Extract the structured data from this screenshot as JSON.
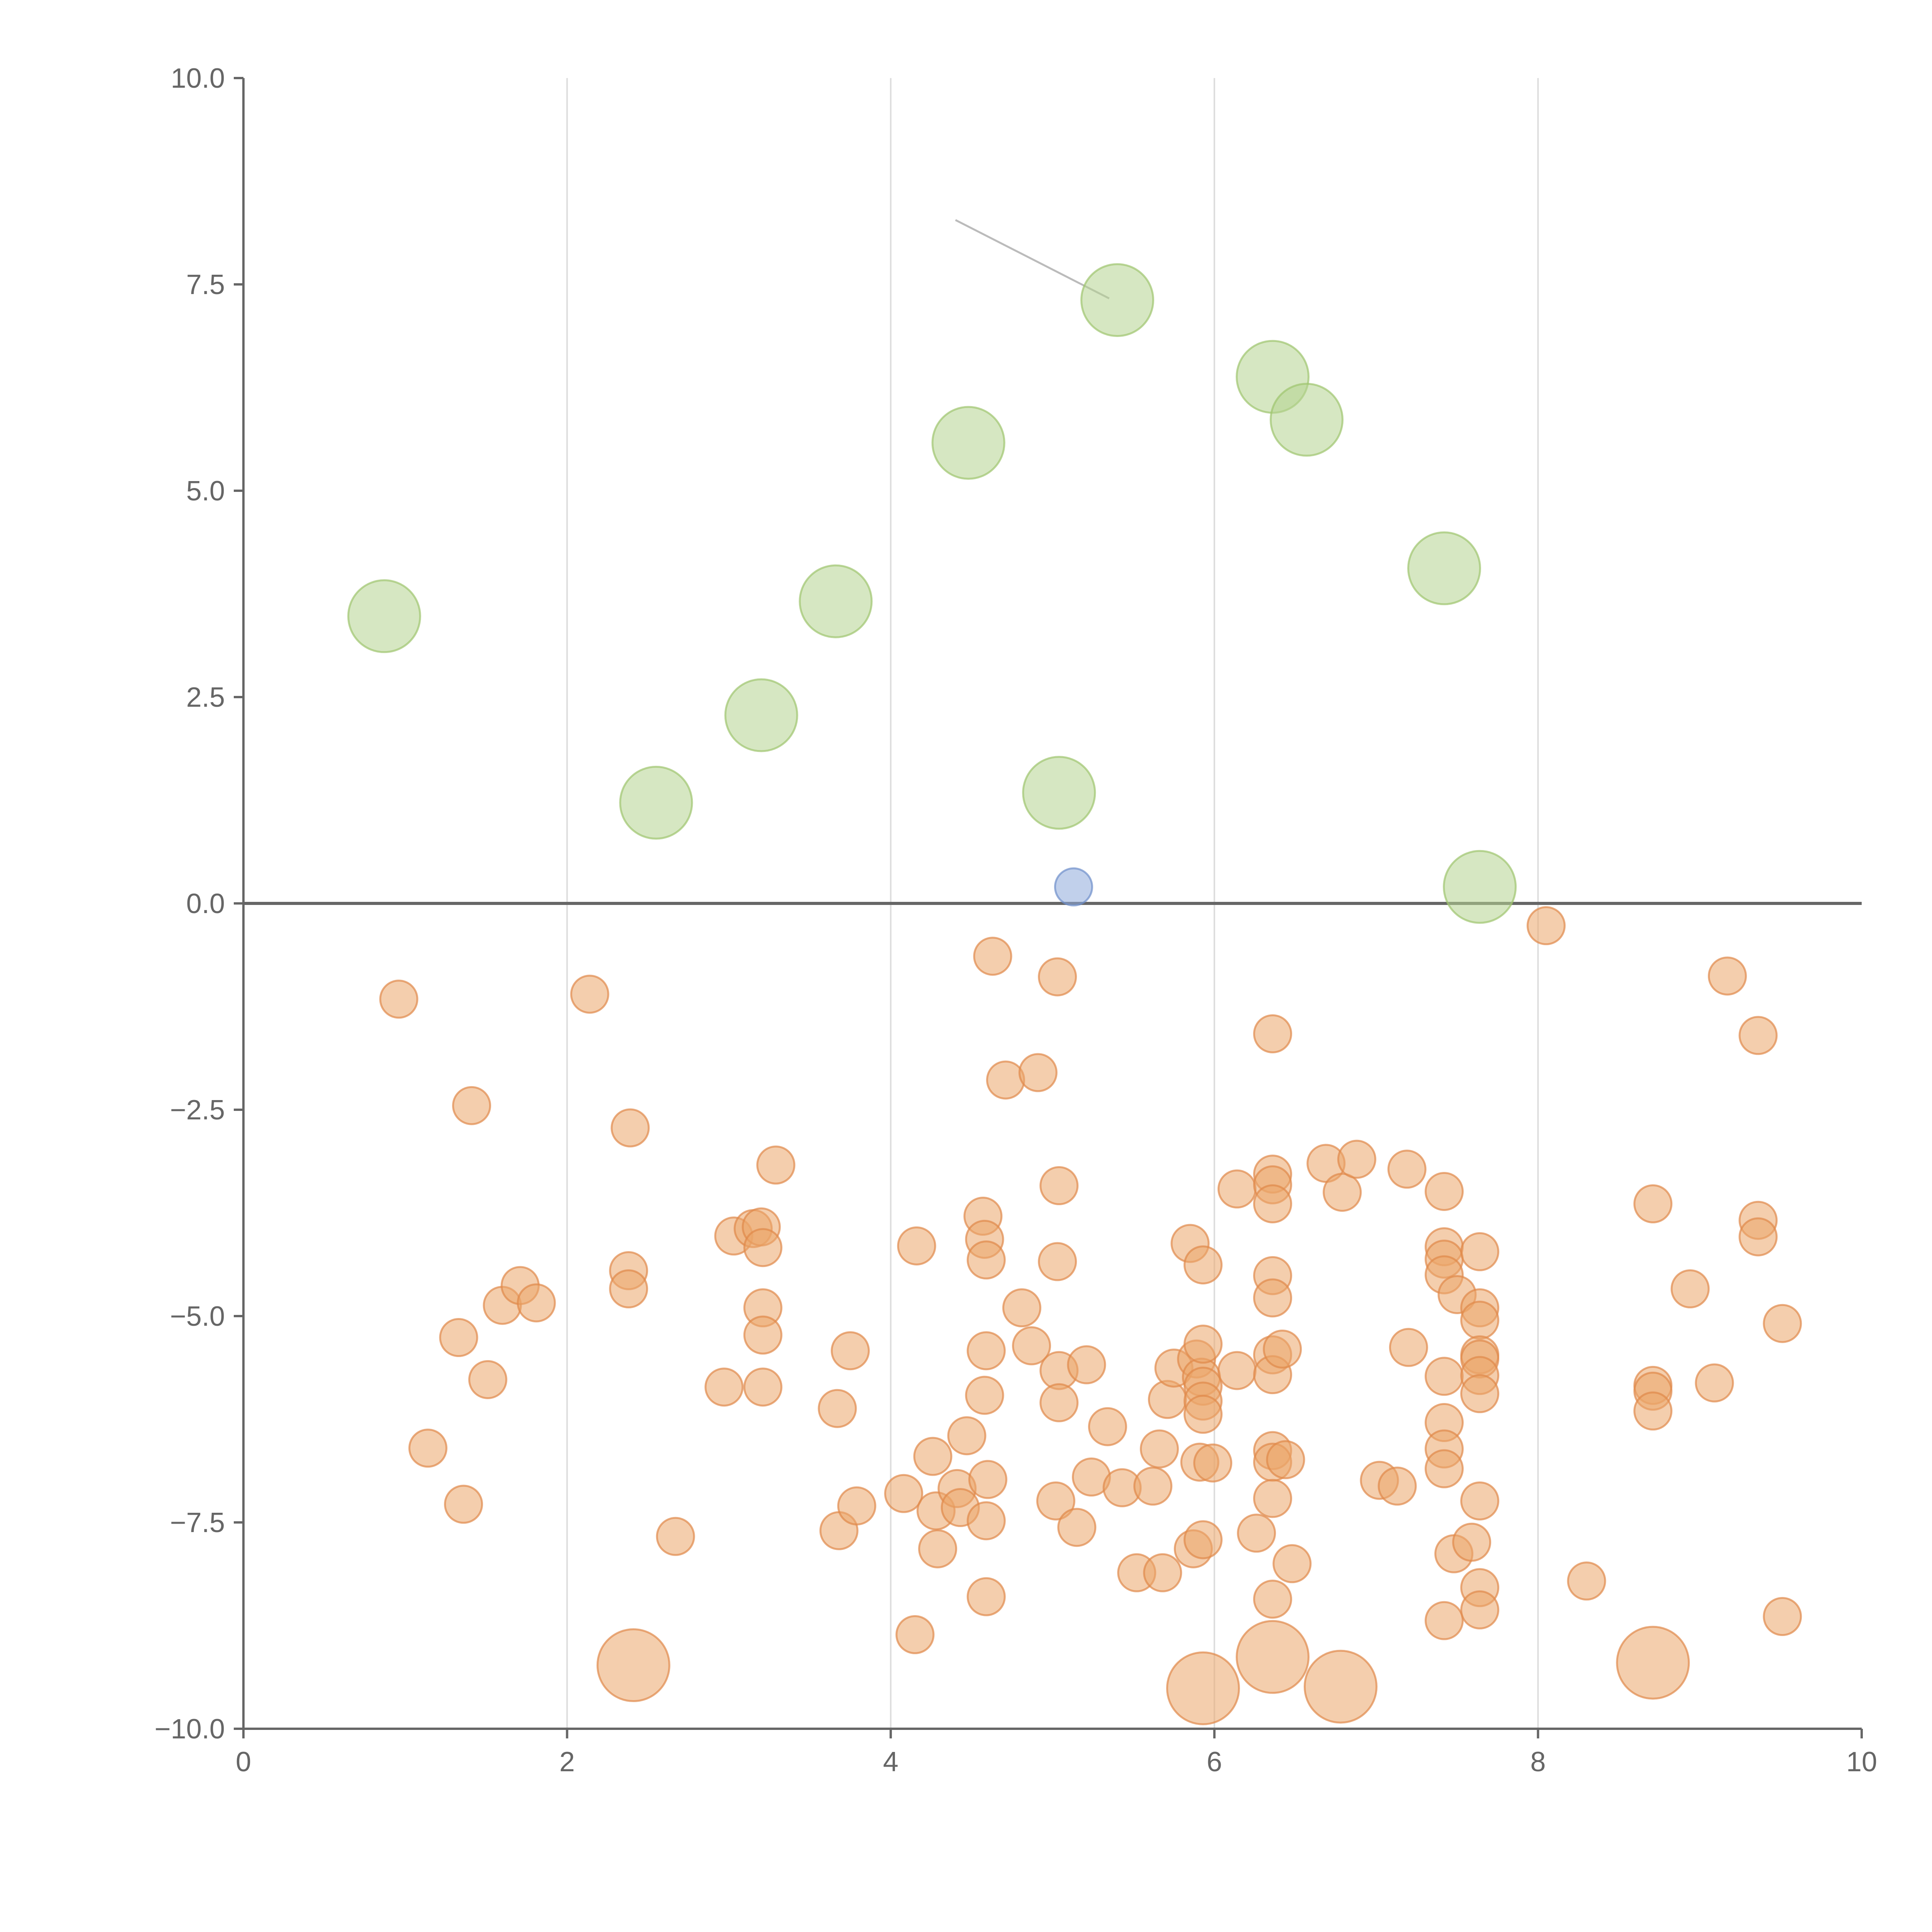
{
  "chart_data": {
    "type": "scatter",
    "title": "",
    "xlabel": "",
    "ylabel": "",
    "xlim": [
      0,
      10
    ],
    "ylim": [
      -10,
      10
    ],
    "x_ticks": [
      0,
      2,
      4,
      6,
      8,
      10
    ],
    "x_tick_labels": [
      "0",
      "2",
      "4",
      "6",
      "8",
      "10"
    ],
    "y_ticks": [
      -10,
      -7.5,
      -5,
      -2.5,
      0,
      2.5,
      5,
      7.5,
      10
    ],
    "y_tick_labels": [
      "−10.0",
      "−7.5",
      "−5.0",
      "−2.5",
      "0.0",
      "2.5",
      "5.0",
      "7.5",
      "10.0"
    ],
    "grid": "vertical",
    "zero_line": 0,
    "colors": {
      "green": "#b5d38f",
      "green_edge": "#9ec46e",
      "orange": "#eba56a",
      "orange_edge": "#e0894a",
      "blue": "#8eaadb",
      "blue_edge": "#6d8fcb",
      "axis": "#666666",
      "grid": "#dddddd",
      "connector": "#bbbbbb"
    },
    "series": [
      {
        "name": "green",
        "color_key": "green",
        "size": "large",
        "points": [
          [
            0.87,
            3.48
          ],
          [
            2.55,
            1.22
          ],
          [
            3.2,
            2.28
          ],
          [
            3.66,
            3.66
          ],
          [
            4.48,
            5.58
          ],
          [
            5.04,
            1.34
          ],
          [
            5.4,
            7.31
          ],
          [
            6.36,
            6.38
          ],
          [
            6.57,
            5.86
          ],
          [
            7.42,
            4.06
          ],
          [
            7.64,
            0.2
          ]
        ]
      },
      {
        "name": "blue",
        "color_key": "blue",
        "size": "small",
        "points": [
          [
            5.13,
            0.2
          ]
        ]
      },
      {
        "name": "orange",
        "color_key": "orange",
        "size": "small",
        "points": [
          [
            0.96,
            -1.16
          ],
          [
            1.41,
            -2.45
          ],
          [
            1.14,
            -6.6
          ],
          [
            1.33,
            -5.26
          ],
          [
            1.36,
            -7.28
          ],
          [
            1.51,
            -5.77
          ],
          [
            1.6,
            -4.87
          ],
          [
            1.71,
            -4.63
          ],
          [
            1.81,
            -4.84
          ],
          [
            2.14,
            -1.1
          ],
          [
            2.39,
            -2.72
          ],
          [
            2.38,
            -4.45
          ],
          [
            2.38,
            -4.67
          ],
          [
            2.67,
            -7.67
          ],
          [
            2.97,
            -5.86
          ],
          [
            3.03,
            -4.03
          ],
          [
            3.15,
            -3.94
          ],
          [
            3.2,
            -3.92
          ],
          [
            3.21,
            -4.17
          ],
          [
            3.21,
            -4.9
          ],
          [
            3.21,
            -5.23
          ],
          [
            3.21,
            -5.86
          ],
          [
            3.29,
            -3.17
          ],
          [
            3.67,
            -6.12
          ],
          [
            3.68,
            -7.6
          ],
          [
            3.75,
            -5.42
          ],
          [
            3.79,
            -7.3
          ],
          [
            4.08,
            -7.15
          ],
          [
            4.16,
            -4.15
          ],
          [
            4.15,
            -8.86
          ],
          [
            4.26,
            -6.7
          ],
          [
            4.28,
            -7.36
          ],
          [
            4.29,
            -7.82
          ],
          [
            4.41,
            -7.09
          ],
          [
            4.43,
            -7.32
          ],
          [
            4.47,
            -6.45
          ],
          [
            4.57,
            -3.79
          ],
          [
            4.58,
            -4.07
          ],
          [
            4.59,
            -4.32
          ],
          [
            4.59,
            -5.42
          ],
          [
            4.58,
            -5.96
          ],
          [
            4.6,
            -6.98
          ],
          [
            4.59,
            -7.48
          ],
          [
            4.59,
            -8.4
          ],
          [
            4.63,
            -0.64
          ],
          [
            4.71,
            -2.14
          ],
          [
            4.81,
            -4.9
          ],
          [
            4.87,
            -5.36
          ],
          [
            4.91,
            -2.05
          ],
          [
            5.02,
            -7.24
          ],
          [
            5.03,
            -0.89
          ],
          [
            5.04,
            -3.42
          ],
          [
            5.03,
            -4.34
          ],
          [
            5.04,
            -5.66
          ],
          [
            5.04,
            -6.05
          ],
          [
            5.15,
            -7.56
          ],
          [
            5.21,
            -5.59
          ],
          [
            5.24,
            -6.95
          ],
          [
            5.34,
            -6.34
          ],
          [
            5.43,
            -7.08
          ],
          [
            5.52,
            -8.11
          ],
          [
            5.62,
            -7.06
          ],
          [
            5.66,
            -6.61
          ],
          [
            5.68,
            -8.11
          ],
          [
            5.71,
            -6.01
          ],
          [
            5.75,
            -5.63
          ],
          [
            5.85,
            -4.12
          ],
          [
            5.87,
            -7.82
          ],
          [
            5.89,
            -5.52
          ],
          [
            5.91,
            -6.77
          ],
          [
            5.92,
            -5.74
          ],
          [
            5.93,
            -4.38
          ],
          [
            5.93,
            -5.34
          ],
          [
            5.93,
            -5.85
          ],
          [
            5.93,
            -6.03
          ],
          [
            5.93,
            -6.19
          ],
          [
            5.93,
            -7.71
          ],
          [
            5.99,
            -6.78
          ],
          [
            6.14,
            -3.46
          ],
          [
            6.14,
            -5.66
          ],
          [
            6.26,
            -7.63
          ],
          [
            6.36,
            -1.58
          ],
          [
            6.36,
            -3.28
          ],
          [
            6.36,
            -3.41
          ],
          [
            6.36,
            -3.64
          ],
          [
            6.36,
            -4.51
          ],
          [
            6.36,
            -4.78
          ],
          [
            6.36,
            -5.47
          ],
          [
            6.36,
            -5.71
          ],
          [
            6.36,
            -6.63
          ],
          [
            6.36,
            -6.77
          ],
          [
            6.36,
            -7.21
          ],
          [
            6.36,
            -8.43
          ],
          [
            6.42,
            -5.4
          ],
          [
            6.44,
            -6.74
          ],
          [
            6.48,
            -8.0
          ],
          [
            6.69,
            -3.15
          ],
          [
            6.79,
            -3.5
          ],
          [
            6.88,
            -3.1
          ],
          [
            7.02,
            -6.99
          ],
          [
            7.13,
            -7.06
          ],
          [
            7.19,
            -3.22
          ],
          [
            7.2,
            -5.38
          ],
          [
            7.42,
            -3.49
          ],
          [
            7.42,
            -4.16
          ],
          [
            7.42,
            -4.31
          ],
          [
            7.42,
            -4.5
          ],
          [
            7.42,
            -5.73
          ],
          [
            7.42,
            -6.29
          ],
          [
            7.42,
            -6.61
          ],
          [
            7.42,
            -6.85
          ],
          [
            7.42,
            -8.69
          ],
          [
            7.48,
            -7.88
          ],
          [
            7.5,
            -4.74
          ],
          [
            7.59,
            -7.74
          ],
          [
            7.64,
            -4.22
          ],
          [
            7.64,
            -4.9
          ],
          [
            7.64,
            -5.05
          ],
          [
            7.64,
            -5.47
          ],
          [
            7.64,
            -5.52
          ],
          [
            7.64,
            -5.72
          ],
          [
            7.64,
            -5.94
          ],
          [
            7.64,
            -7.24
          ],
          [
            7.64,
            -8.29
          ],
          [
            7.64,
            -8.56
          ],
          [
            8.05,
            -0.27
          ],
          [
            8.3,
            -8.21
          ],
          [
            8.71,
            -3.64
          ],
          [
            8.71,
            -5.84
          ],
          [
            8.71,
            -5.91
          ],
          [
            8.71,
            -6.15
          ],
          [
            8.94,
            -4.67
          ],
          [
            9.09,
            -5.81
          ],
          [
            9.17,
            -0.88
          ],
          [
            9.36,
            -1.6
          ],
          [
            9.36,
            -3.84
          ],
          [
            9.36,
            -4.04
          ],
          [
            9.51,
            -5.09
          ],
          [
            9.51,
            -8.64
          ]
        ]
      },
      {
        "name": "orange-large",
        "color_key": "orange",
        "size": "large",
        "points": [
          [
            2.41,
            -9.23
          ],
          [
            5.93,
            -9.51
          ],
          [
            6.36,
            -9.13
          ],
          [
            6.78,
            -9.49
          ],
          [
            8.71,
            -9.2
          ]
        ]
      }
    ],
    "connectors": [
      {
        "from": [
          4.4,
          8.28
        ],
        "to": [
          5.35,
          7.33
        ]
      }
    ]
  }
}
